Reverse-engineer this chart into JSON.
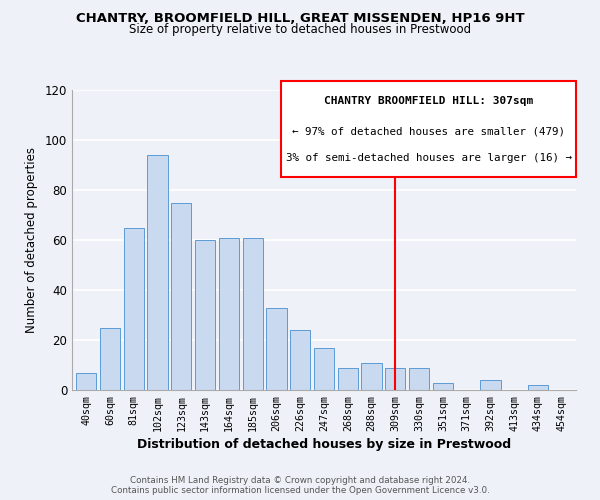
{
  "title": "CHANTRY, BROOMFIELD HILL, GREAT MISSENDEN, HP16 9HT",
  "subtitle": "Size of property relative to detached houses in Prestwood",
  "xlabel": "Distribution of detached houses by size in Prestwood",
  "ylabel": "Number of detached properties",
  "bar_labels": [
    "40sqm",
    "60sqm",
    "81sqm",
    "102sqm",
    "123sqm",
    "143sqm",
    "164sqm",
    "185sqm",
    "206sqm",
    "226sqm",
    "247sqm",
    "268sqm",
    "288sqm",
    "309sqm",
    "330sqm",
    "351sqm",
    "371sqm",
    "392sqm",
    "413sqm",
    "434sqm",
    "454sqm"
  ],
  "bar_values": [
    7,
    25,
    65,
    94,
    75,
    60,
    61,
    61,
    33,
    24,
    17,
    9,
    11,
    9,
    9,
    3,
    0,
    4,
    0,
    2,
    0
  ],
  "bar_color": "#c8d9f0",
  "bar_edge_color": "#5b9bd5",
  "ylim": [
    0,
    120
  ],
  "yticks": [
    0,
    20,
    40,
    60,
    80,
    100,
    120
  ],
  "vline_index": 13,
  "vline_color": "red",
  "annotation_title": "CHANTRY BROOMFIELD HILL: 307sqm",
  "annotation_line1": "← 97% of detached houses are smaller (479)",
  "annotation_line2": "3% of semi-detached houses are larger (16) →",
  "footer_line1": "Contains HM Land Registry data © Crown copyright and database right 2024.",
  "footer_line2": "Contains public sector information licensed under the Open Government Licence v3.0.",
  "background_color": "#eef2f8",
  "grid_color": "#ffffff"
}
